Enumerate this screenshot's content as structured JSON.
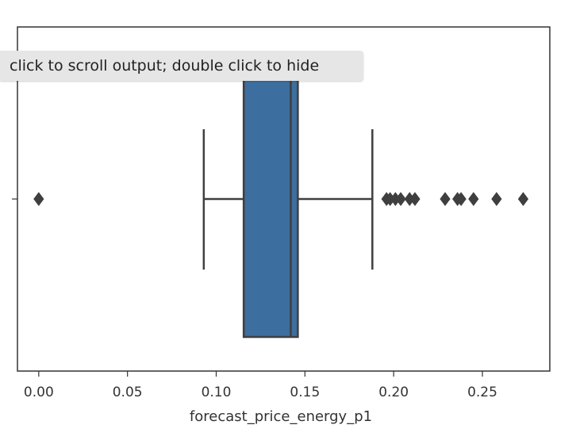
{
  "tooltip": {
    "text": "click to scroll output; double click to hide"
  },
  "colors": {
    "box_fill": "#3c6e9f",
    "line": "#3f3f3f",
    "outlier": "#3f3f3f",
    "frame": "#333333",
    "tooltip_bg": "#e6e6e6"
  },
  "chart_data": {
    "type": "box",
    "orientation": "horizontal",
    "xlabel": "forecast_price_energy_p1",
    "ylabel": "",
    "xlim": [
      -0.012,
      0.288
    ],
    "xticks": [
      0.0,
      0.05,
      0.1,
      0.15,
      0.2,
      0.25
    ],
    "xtick_labels": [
      "0.00",
      "0.05",
      "0.10",
      "0.15",
      "0.20",
      "0.25"
    ],
    "grid": false,
    "box": {
      "whisker_low": 0.093,
      "q1": 0.1155,
      "median": 0.142,
      "q3": 0.146,
      "whisker_high": 0.188
    },
    "outliers": [
      0.0,
      0.196,
      0.198,
      0.201,
      0.204,
      0.209,
      0.212,
      0.229,
      0.236,
      0.238,
      0.245,
      0.258,
      0.273
    ]
  }
}
